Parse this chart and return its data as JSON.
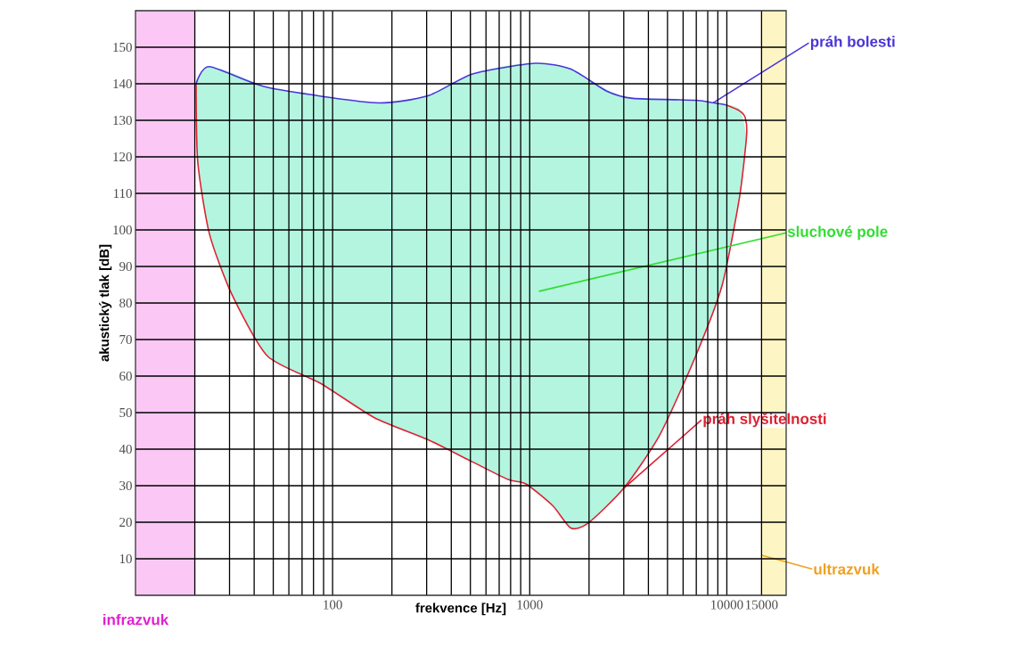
{
  "chart_data": {
    "type": "line",
    "xlabel": "frekvence [Hz]",
    "ylabel": "akustický tlak [dB]",
    "log": "x",
    "grid": true,
    "xlim": [
      10,
      20000
    ],
    "ylim": [
      0,
      160
    ],
    "xticks": [
      100,
      1000,
      10000,
      15000
    ],
    "yticks": [
      10,
      20,
      30,
      40,
      50,
      60,
      70,
      80,
      90,
      100,
      110,
      120,
      130,
      140,
      150
    ],
    "series": [
      {
        "name": "práh bolesti",
        "color": "#4a35d8",
        "x": [
          20.3,
          23.7,
          46.7,
          163,
          304,
          513,
          1066,
          1617,
          2456,
          3341,
          6950,
          8530,
          9930
        ],
        "values": [
          140,
          144.7,
          139,
          134.8,
          136.7,
          142.7,
          145.6,
          144,
          138,
          136,
          135.5,
          134.8,
          134.2
        ]
      },
      {
        "name": "práh slyšitelnosti",
        "color": "#dd2233",
        "x": [
          20.3,
          20.7,
          23.7,
          30.8,
          46.7,
          87,
          163,
          304,
          513,
          777,
          957,
          1310,
          1617,
          1975,
          3000,
          4560,
          6950,
          9460,
          11600,
          12600,
          12400,
          11600,
          9930
        ],
        "values": [
          140,
          118.6,
          99,
          82.4,
          65.5,
          58,
          48.6,
          42.6,
          36.5,
          31.7,
          30.5,
          24.5,
          18.4,
          19.7,
          29.3,
          43.8,
          65.5,
          84.8,
          109,
          125.9,
          130.7,
          132.6,
          134.2
        ]
      },
      {
        "type": "area",
        "color": "#b4f5e0",
        "x": [
          20.3,
          20.7,
          23.7,
          30.8,
          46.7,
          87,
          163,
          304,
          513,
          777,
          957,
          1310,
          1617,
          1975,
          3000,
          4560,
          6950,
          9460,
          11600,
          12600
        ],
        "values": [
          140,
          141.5,
          144.7,
          143,
          139,
          136.5,
          134.8,
          136.7,
          142.7,
          145,
          145.5,
          145.3,
          144,
          141,
          136.5,
          135.8,
          135.5,
          134.5,
          133,
          126
        ]
      }
    ],
    "bands": [
      {
        "axis": "x",
        "from": 10,
        "to": 20,
        "label": "infrazvuk",
        "color": "#fbc8f5"
      },
      {
        "axis": "x",
        "from": 15000,
        "to": 20000,
        "label": "ultrazvuk",
        "color": "#fdf6c4"
      }
    ],
    "annotations": [
      "sluchové pole"
    ]
  }
}
